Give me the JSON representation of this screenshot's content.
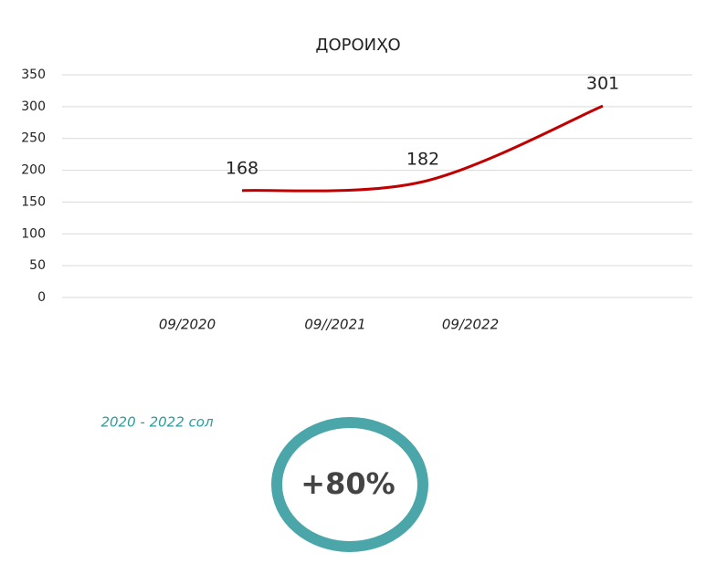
{
  "chart_data": {
    "type": "line",
    "title": "ДОРОИҲО",
    "categories": [
      "09/2020",
      "09//2021",
      "09/2022"
    ],
    "values": [
      168,
      182,
      301
    ],
    "color": "#c00000",
    "ylim": [
      0,
      350
    ],
    "yticks": [
      0,
      50,
      100,
      150,
      200,
      250,
      300,
      350
    ],
    "grid": true
  },
  "summary": {
    "period": "2020 - 2022 сол",
    "change": "+80%"
  }
}
